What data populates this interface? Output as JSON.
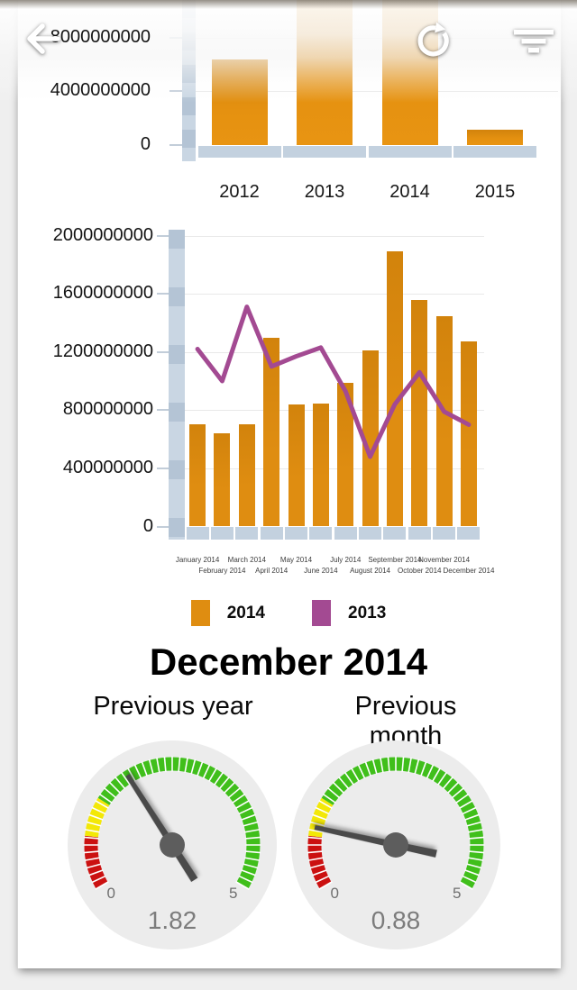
{
  "toolbar": {
    "icons": [
      {
        "name": "back-arrow-icon"
      },
      {
        "name": "refresh-icon"
      },
      {
        "name": "filter-icon"
      }
    ]
  },
  "summary": {
    "title": "December 2014"
  },
  "legend": {
    "items": [
      {
        "label": "2014",
        "color": "#df8d11"
      },
      {
        "label": "2013",
        "color": "#a34a92"
      }
    ]
  },
  "chart_data": [
    {
      "id": "yearly_totals",
      "type": "bar",
      "categories": [
        "2012",
        "2013",
        "2014",
        "2015"
      ],
      "values": [
        6350000000,
        null,
        null,
        1150000000
      ],
      "bars_cut_off_at_top": [
        false,
        true,
        true,
        false
      ],
      "yticks": [
        0,
        4000000000,
        8000000000
      ],
      "ytick_labels": [
        "0",
        "4000000000",
        "8000000000"
      ],
      "bar_color": "#df8d11",
      "axis_color": "#c3d1df",
      "grid": true,
      "legend_position": "none",
      "note": "2013 and 2014 bars extend past the visible top edge under the toolbar"
    },
    {
      "id": "monthly_2014_vs_2013",
      "type": "bar+line",
      "categories": [
        "January 2014",
        "February 2014",
        "March 2014",
        "April 2014",
        "May 2014",
        "June 2014",
        "July 2014",
        "August 2014",
        "September 2014",
        "October 2014",
        "November 2014",
        "December 2014"
      ],
      "series": [
        {
          "name": "2014",
          "type": "bar",
          "color": "#df8d11",
          "values": [
            700000000,
            640000000,
            700000000,
            1300000000,
            840000000,
            845000000,
            990000000,
            1210000000,
            1890000000,
            1560000000,
            1445000000,
            1270000000
          ]
        },
        {
          "name": "2013",
          "type": "line",
          "color": "#a34a92",
          "values": [
            1220000000,
            1000000000,
            1510000000,
            1100000000,
            1170000000,
            1230000000,
            930000000,
            480000000,
            840000000,
            1060000000,
            790000000,
            700000000
          ]
        }
      ],
      "yticks": [
        0,
        400000000,
        800000000,
        1200000000,
        1600000000,
        2000000000
      ],
      "ytick_labels": [
        "0",
        "400000000",
        "800000000",
        "1200000000",
        "1600000000",
        "2000000000"
      ],
      "ylim": [
        0,
        2000000000
      ],
      "axis_color": "#c3d1df",
      "grid": true,
      "legend_position": "bottom"
    },
    {
      "id": "gauge_previous_year",
      "type": "gauge",
      "title": "Previous year",
      "value": 1.82,
      "value_label": "1.82",
      "min": 0,
      "max": 5,
      "min_label": "0",
      "max_label": "5",
      "bands": [
        {
          "from": 0,
          "to": 0.75,
          "color": "#cb1111"
        },
        {
          "from": 0.75,
          "to": 1.3,
          "color": "#f3e807"
        },
        {
          "from": 1.3,
          "to": 5,
          "color": "#40bf1b"
        }
      ],
      "needle_color": "#4a4a4a",
      "face_color": "#ececec"
    },
    {
      "id": "gauge_previous_month",
      "type": "gauge",
      "title": "Previous month",
      "value": 0.88,
      "value_label": "0.88",
      "min": 0,
      "max": 5,
      "min_label": "0",
      "max_label": "5",
      "bands": [
        {
          "from": 0,
          "to": 0.75,
          "color": "#cb1111"
        },
        {
          "from": 0.75,
          "to": 1.3,
          "color": "#f3e807"
        },
        {
          "from": 1.3,
          "to": 5,
          "color": "#40bf1b"
        }
      ],
      "needle_color": "#4a4a4a",
      "face_color": "#ececec"
    }
  ]
}
